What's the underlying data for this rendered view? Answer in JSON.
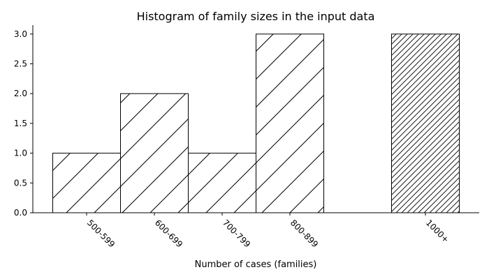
{
  "chart_data": {
    "type": "bar",
    "title": "Histogram of family sizes in the input data",
    "xlabel": "Number of cases (families)",
    "ylabel": "",
    "categories": [
      "500-599",
      "600-699",
      "700-799",
      "800-899",
      "1000+"
    ],
    "values": [
      1,
      2,
      1,
      3,
      3
    ],
    "positions": [
      0,
      1,
      2,
      3,
      5
    ],
    "hatch": [
      "sparse",
      "sparse",
      "sparse",
      "sparse",
      "dense"
    ],
    "ylim": [
      0,
      3.15
    ],
    "yticks": [
      0.0,
      0.5,
      1.0,
      1.5,
      2.0,
      2.5,
      3.0
    ],
    "ytick_labels": [
      "0.0",
      "0.5",
      "1.0",
      "1.5",
      "2.0",
      "2.5",
      "3.0"
    ],
    "bar_color": "#ffffff",
    "edge_color": "#000000",
    "grid": false,
    "legend": "none"
  }
}
